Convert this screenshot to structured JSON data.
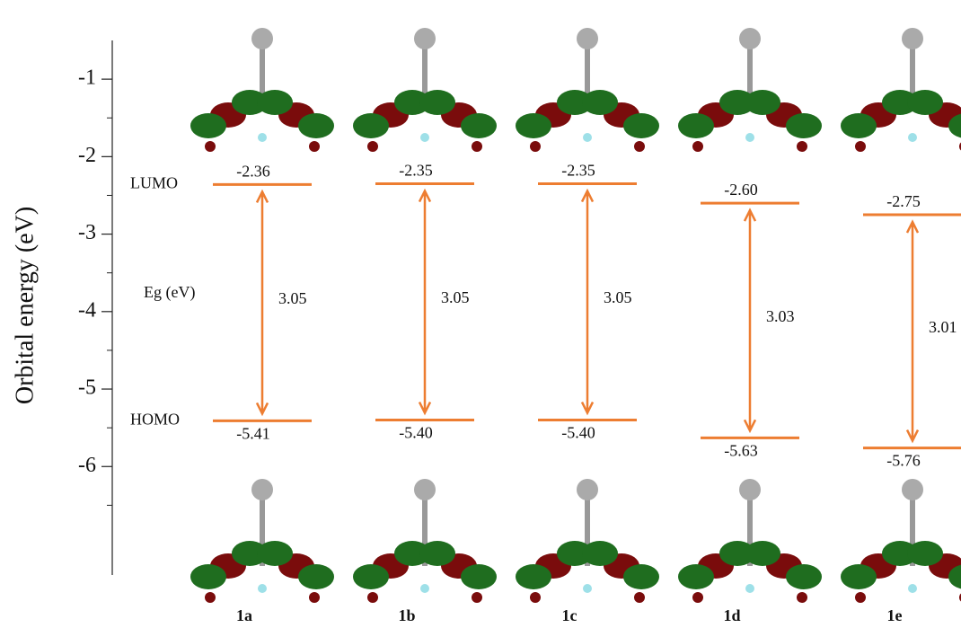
{
  "chart_data": {
    "type": "energy-level",
    "y_label": "Orbital energy (eV)",
    "ylim": [
      -7.4,
      -0.5
    ],
    "yticks": [
      -1,
      -2,
      -3,
      -4,
      -5,
      -6
    ],
    "minor_yticks": [
      -1.5,
      -2.5,
      -3.5,
      -4.5,
      -5.5,
      -6.5
    ],
    "categories": [
      "1a",
      "1b",
      "1c",
      "1d",
      "1e"
    ],
    "series": [
      {
        "name": "LUMO",
        "color": "#ed7d31",
        "values": [
          -2.36,
          -2.35,
          -2.35,
          -2.6,
          -2.75
        ],
        "value_labels": [
          "-2.36",
          "-2.35",
          "-2.35",
          "-2.60",
          "-2.75"
        ]
      },
      {
        "name": "HOMO",
        "color": "#ed7d31",
        "values": [
          -5.41,
          -5.4,
          -5.4,
          -5.63,
          -5.76
        ],
        "value_labels": [
          "-5.41",
          "-5.40",
          "-5.40",
          "-5.63",
          "-5.76"
        ]
      }
    ],
    "gap": {
      "name": "Eg (eV)",
      "color": "#ed7d31",
      "values": [
        3.05,
        3.05,
        3.05,
        3.03,
        3.01
      ]
    }
  }
}
